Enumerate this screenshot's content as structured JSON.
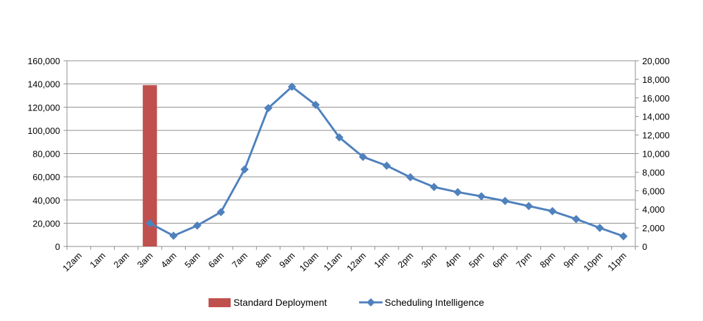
{
  "chart_data": {
    "type": "bar+line",
    "categories": [
      "12am",
      "1am",
      "2am",
      "3am",
      "4am",
      "5am",
      "6am",
      "7am",
      "8am",
      "9am",
      "10am",
      "11am",
      "12am",
      "1pm",
      "2pm",
      "3pm",
      "4pm",
      "5pm",
      "6pm",
      "7pm",
      "8pm",
      "9pm",
      "10pm",
      "11pm"
    ],
    "series": [
      {
        "name": "Standard Deployment",
        "type": "bar",
        "axis": "left",
        "color": "#C0504D",
        "values": [
          0,
          0,
          0,
          139000,
          0,
          0,
          0,
          0,
          0,
          0,
          0,
          0,
          0,
          0,
          0,
          0,
          0,
          0,
          0,
          0,
          0,
          0,
          0,
          0
        ]
      },
      {
        "name": "Scheduling Intelligence",
        "type": "line",
        "axis": "right",
        "color": "#4F81BD",
        "marker": "diamond",
        "values": [
          null,
          null,
          null,
          2500,
          1150,
          2250,
          3700,
          8300,
          14900,
          17200,
          15250,
          11750,
          9650,
          8700,
          7450,
          6400,
          5850,
          5400,
          4900,
          4350,
          3800,
          2950,
          2000,
          1100
        ]
      }
    ],
    "y_left": {
      "ylim": [
        0,
        160000
      ],
      "ticks": [
        0,
        20000,
        40000,
        60000,
        80000,
        100000,
        120000,
        140000,
        160000
      ],
      "tick_labels": [
        "0",
        "20,000",
        "40,000",
        "60,000",
        "80,000",
        "100,000",
        "120,000",
        "140,000",
        "160,000"
      ]
    },
    "y_right": {
      "ylim": [
        0,
        20000
      ],
      "ticks": [
        0,
        2000,
        4000,
        6000,
        8000,
        10000,
        12000,
        14000,
        16000,
        18000,
        20000
      ],
      "tick_labels": [
        "0",
        "2,000",
        "4,000",
        "6,000",
        "8,000",
        "10,000",
        "12,000",
        "14,000",
        "16,000",
        "18,000",
        "20,000"
      ]
    },
    "title": "",
    "xlabel": "",
    "ylabel": "",
    "grid": true,
    "legend": "bottom"
  }
}
